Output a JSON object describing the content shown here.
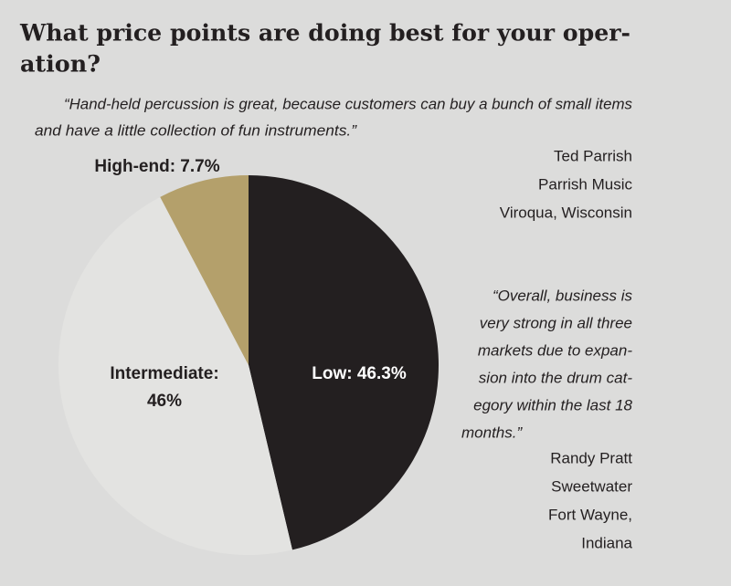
{
  "chart_data": {
    "type": "pie",
    "title": [
      "What price points are doing best for your oper-",
      "ation?"
    ],
    "values": [
      46.3,
      46,
      7.7
    ],
    "value_labels": [
      [
        "Low: 46.3%"
      ],
      [
        "Intermediate:",
        "46%"
      ],
      [
        "High-end: 7.7%"
      ]
    ],
    "colors": [
      "#231f20",
      "#e3e3e1",
      "#b4a06b"
    ],
    "quotes": [
      {
        "text": [
          "“Hand-held percussion is great, because customers can buy a bunch of small items",
          "and have a little collection of fun instruments.”"
        ],
        "source": [
          "Ted Parrish",
          "Parrish Music",
          "Viroqua, Wisconsin"
        ]
      },
      {
        "text": [
          "“Overall, business is",
          "very strong in all three",
          "markets due to expan-",
          "sion into the drum cat-",
          "egory within the last 18",
          "months.”"
        ],
        "source": [
          "Randy Pratt",
          "Sweetwater",
          "Fort Wayne,",
          "Indiana"
        ]
      }
    ]
  }
}
